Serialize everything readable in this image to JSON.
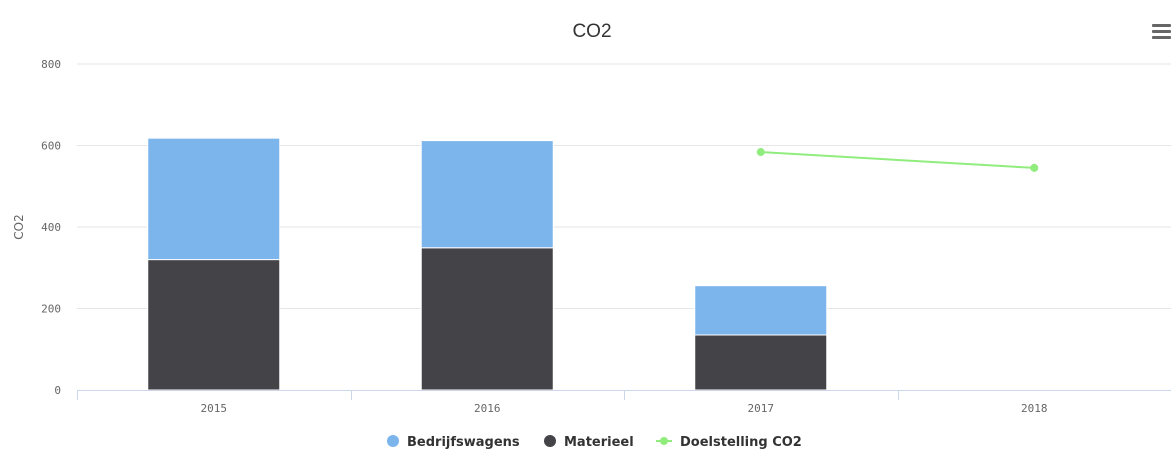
{
  "chart_data": {
    "type": "bar",
    "title": "CO2",
    "ylabel": "CO2",
    "xlabel": "",
    "categories": [
      "2015",
      "2016",
      "2017",
      "2018"
    ],
    "ylim": [
      0,
      800
    ],
    "yticks": [
      0,
      200,
      400,
      600,
      800
    ],
    "stacked": true,
    "grid": true,
    "legend_position": "bottom-center",
    "series": [
      {
        "name": "Bedrijfswagens",
        "kind": "bar",
        "color": "#7cb5ec",
        "values": [
          298,
          263,
          121,
          null
        ]
      },
      {
        "name": "Materieel",
        "kind": "bar",
        "color": "#434348",
        "values": [
          320,
          349,
          135,
          null
        ]
      },
      {
        "name": "Doelstelling CO2",
        "kind": "line",
        "color": "#90ed7d",
        "values": [
          null,
          null,
          584,
          545
        ]
      }
    ]
  },
  "icons": {
    "menu": "hamburger-menu-icon"
  }
}
